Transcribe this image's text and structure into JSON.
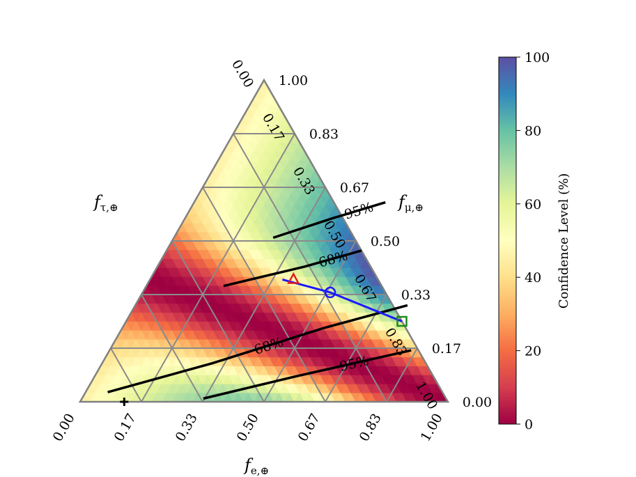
{
  "chart_data": {
    "type": "heatmap",
    "subtype": "ternary",
    "colormap": "Spectral",
    "axes": {
      "bottom": {
        "label": "f",
        "label_sub": "e,⊕",
        "ticks": [
          "0.00",
          "0.17",
          "0.33",
          "0.50",
          "0.67",
          "0.83",
          "1.00"
        ]
      },
      "right": {
        "label": "f",
        "label_sub": "μ,⊕",
        "ticks": [
          "0.00",
          "0.17",
          "0.33",
          "0.50",
          "0.67",
          "0.83",
          "1.00"
        ]
      },
      "left": {
        "label": "f",
        "label_sub": "τ,⊕",
        "ticks": [
          "0.00",
          "0.17",
          "0.33",
          "0.50",
          "0.67",
          "0.83",
          "1.00"
        ]
      }
    },
    "colorbar": {
      "label": "Confidence Level (%)",
      "range": [
        0,
        100
      ],
      "ticks": [
        "0",
        "20",
        "40",
        "60",
        "80",
        "100"
      ]
    },
    "contours": [
      {
        "label": "68%",
        "level": 68,
        "band": [
          {
            "fe": 0.06,
            "fmu": 0.03
          },
          {
            "fe": 0.3,
            "fmu": 0.12
          },
          {
            "fe": 0.55,
            "fmu": 0.23
          },
          {
            "fe": 0.74,
            "fmu": 0.3
          }
        ]
      },
      {
        "label": "68%",
        "level": 68,
        "band": [
          {
            "fe": 0.21,
            "fmu": 0.36
          },
          {
            "fe": 0.4,
            "fmu": 0.42
          },
          {
            "fe": 0.53,
            "fmu": 0.47
          }
        ]
      },
      {
        "label": "95%",
        "level": 95,
        "band": [
          {
            "fe": 0.33,
            "fmu": 0.01
          },
          {
            "fe": 0.55,
            "fmu": 0.08
          },
          {
            "fe": 0.82,
            "fmu": 0.16
          }
        ]
      },
      {
        "label": "95%",
        "level": 95,
        "band": [
          {
            "fe": 0.27,
            "fmu": 0.51
          },
          {
            "fe": 0.4,
            "fmu": 0.57
          },
          {
            "fe": 0.52,
            "fmu": 0.62
          }
        ]
      }
    ],
    "markers": [
      {
        "shape": "triangle",
        "color": "#e11d1d",
        "fe": 0.39,
        "fmu": 0.38
      },
      {
        "shape": "circle",
        "color": "#1a1aff",
        "fe": 0.51,
        "fmu": 0.34
      },
      {
        "shape": "square",
        "color": "#1a8a1a",
        "fe": 0.75,
        "fmu": 0.25
      },
      {
        "shape": "plus",
        "color": "#000000",
        "fe": 0.12,
        "fmu": 0.0
      }
    ],
    "line": {
      "color": "#1a1aff",
      "points": [
        {
          "fe": 0.36,
          "fmu": 0.38
        },
        {
          "fe": 0.51,
          "fmu": 0.34
        },
        {
          "fe": 0.75,
          "fmu": 0.25
        }
      ]
    }
  }
}
